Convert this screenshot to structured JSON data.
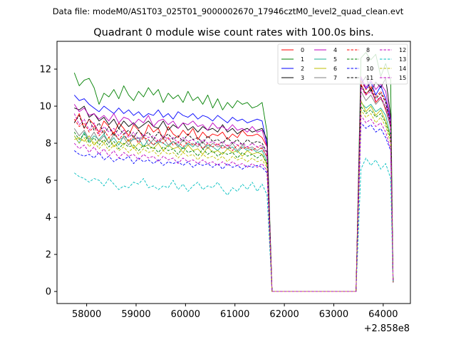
{
  "figure": {
    "suptitle": "Data file: modeM0/AS1T03_025T01_9000002670_17946cztM0_level2_quad_clean.evt",
    "title": "Quadrant 0 module wise count rates with 100.0s bins.",
    "x_offset_label": "+2.858e8"
  },
  "chart_data": {
    "type": "line",
    "title": "Quadrant 0 module wise count rates with 100.0s bins.",
    "xlabel": "",
    "ylabel": "",
    "x_offset": 285800000,
    "xlim": [
      57400,
      64550
    ],
    "ylim": [
      -0.65,
      13.5
    ],
    "xticks": [
      58000,
      59000,
      60000,
      61000,
      62000,
      63000,
      64000
    ],
    "xtick_labels": [
      "58000",
      "59000",
      "60000",
      "61000",
      "62000",
      "63000",
      "64000"
    ],
    "yticks": [
      0,
      2,
      4,
      6,
      8,
      10,
      12
    ],
    "ytick_labels": [
      "0",
      "2",
      "4",
      "6",
      "8",
      "10",
      "12"
    ],
    "legend_position": "top-right",
    "x_start": 57750,
    "x_step": 100,
    "gap_range": [
      61750,
      63450
    ],
    "after_start": 63550,
    "after_count": 7,
    "series": [
      {
        "name": "0",
        "color": "#ff0000",
        "dash": "solid",
        "before": [
          9.1,
          9.6,
          8.8,
          9.3,
          9.0,
          8.6,
          9.2,
          8.9,
          8.5,
          9.1,
          8.8,
          8.4,
          9.0,
          8.7,
          8.3,
          9.0,
          8.6,
          8.8,
          8.2,
          8.9,
          8.5,
          8.3,
          8.7,
          8.4,
          8.8,
          8.2,
          8.6,
          8.3,
          8.5,
          8.4,
          8.6,
          8.2,
          8.5,
          8.3,
          8.7,
          8.4,
          8.4,
          8.5,
          8.3
        ],
        "end": 7.8,
        "after": [
          11.2,
          10.6,
          11.0,
          10.2,
          10.5,
          9.8,
          8.9
        ]
      },
      {
        "name": "1",
        "color": "#008000",
        "dash": "solid",
        "before": [
          11.8,
          11.1,
          11.4,
          11.5,
          11.0,
          10.1,
          10.7,
          10.5,
          10.9,
          10.4,
          11.1,
          10.6,
          10.3,
          10.8,
          10.5,
          11.0,
          10.6,
          10.9,
          10.2,
          10.7,
          10.4,
          10.6,
          10.2,
          10.8,
          10.3,
          10.5,
          10.1,
          10.6,
          9.9,
          10.4,
          9.8,
          10.2,
          9.9,
          10.3,
          10.1,
          10.2,
          9.9,
          10.0,
          10.2
        ],
        "end": 8.6,
        "after": [
          12.6,
          12.9,
          12.5,
          12.8,
          11.6,
          12.3,
          11.4
        ]
      },
      {
        "name": "2",
        "color": "#0000ff",
        "dash": "solid",
        "before": [
          10.6,
          10.3,
          10.4,
          10.1,
          9.9,
          9.7,
          10.0,
          9.8,
          9.6,
          9.9,
          9.6,
          9.8,
          9.5,
          9.7,
          9.4,
          9.6,
          9.5,
          9.8,
          9.4,
          9.6,
          9.3,
          9.7,
          9.5,
          9.4,
          9.6,
          9.3,
          9.5,
          9.4,
          9.2,
          9.5,
          9.3,
          9.1,
          9.4,
          9.2,
          9.3,
          9.1,
          9.2,
          9.3,
          9.2
        ],
        "end": 7.9,
        "after": [
          11.5,
          10.9,
          11.3,
          10.6,
          11.1,
          10.4,
          9.2
        ]
      },
      {
        "name": "3",
        "color": "#000000",
        "dash": "solid",
        "before": [
          9.9,
          9.8,
          10.0,
          9.4,
          9.6,
          9.2,
          9.4,
          9.0,
          9.3,
          8.8,
          9.2,
          8.9,
          9.1,
          8.8,
          9.0,
          9.2,
          8.9,
          8.8,
          9.2,
          8.7,
          9.0,
          8.8,
          9.1,
          8.7,
          8.9,
          8.6,
          8.9,
          8.7,
          8.8,
          8.6,
          9.0,
          8.6,
          8.8,
          8.5,
          8.7,
          8.8,
          8.6,
          8.7,
          8.8
        ],
        "end": 8.2,
        "after": [
          11.2,
          11.6,
          10.8,
          11.3,
          11.0,
          11.5,
          9.5
        ]
      },
      {
        "name": "4",
        "color": "#bf00bf",
        "dash": "solid",
        "before": [
          10.1,
          9.7,
          9.9,
          9.5,
          9.6,
          9.3,
          9.5,
          9.2,
          9.6,
          9.1,
          9.4,
          9.3,
          9.0,
          9.3,
          9.1,
          9.5,
          8.9,
          9.2,
          9.3,
          9.0,
          9.2,
          8.8,
          9.1,
          9.0,
          9.2,
          8.9,
          9.0,
          8.7,
          9.1,
          8.8,
          8.9,
          8.7,
          9.0,
          8.7,
          8.8,
          8.6,
          8.9,
          8.6,
          8.7
        ],
        "end": 7.8,
        "after": [
          11.6,
          11.0,
          11.4,
          10.9,
          11.2,
          10.8,
          9.3
        ]
      },
      {
        "name": "5",
        "color": "#1aaf90",
        "dash": "solid",
        "before": [
          8.4,
          8.0,
          8.6,
          8.1,
          8.4,
          8.2,
          8.5,
          8.0,
          8.3,
          7.9,
          8.4,
          8.1,
          8.2,
          8.3,
          7.8,
          8.2,
          7.9,
          8.1,
          8.0,
          7.8,
          8.1,
          7.9,
          7.7,
          8.0,
          7.8,
          8.1,
          7.7,
          7.9,
          7.8,
          7.6,
          7.9,
          7.7,
          7.8,
          7.5,
          7.8,
          7.6,
          7.7,
          7.5,
          7.6
        ],
        "end": 7.0,
        "after": [
          10.2,
          9.9,
          10.1,
          9.7,
          9.9,
          9.5,
          8.4
        ]
      },
      {
        "name": "6",
        "color": "#bfbf00",
        "dash": "solid",
        "before": [
          8.2,
          8.3,
          8.1,
          8.4,
          7.9,
          8.2,
          8.0,
          8.3,
          7.8,
          8.1,
          7.9,
          8.2,
          7.7,
          8.0,
          7.8,
          7.9,
          7.7,
          8.0,
          7.6,
          7.9,
          7.7,
          7.8,
          7.5,
          7.9,
          7.6,
          7.7,
          7.4,
          7.8,
          7.5,
          7.6,
          7.4,
          7.7,
          7.5,
          7.6,
          7.3,
          7.6,
          7.4,
          7.5,
          7.4
        ],
        "end": 6.8,
        "after": [
          10.3,
          9.7,
          10.0,
          9.5,
          9.8,
          9.2,
          8.3
        ]
      },
      {
        "name": "7",
        "color": "#7f7f7f",
        "dash": "solid",
        "before": [
          8.8,
          8.4,
          8.7,
          8.2,
          8.6,
          8.1,
          8.4,
          8.0,
          8.5,
          8.2,
          8.3,
          7.9,
          8.3,
          8.1,
          8.4,
          7.9,
          8.2,
          8.0,
          8.3,
          7.9,
          8.1,
          7.8,
          8.2,
          7.9,
          8.0,
          7.8,
          8.1,
          7.7,
          8.0,
          7.8,
          7.9,
          7.7,
          8.0,
          7.6,
          7.9,
          7.7,
          7.8,
          7.6,
          7.8
        ],
        "end": 7.2,
        "after": [
          10.8,
          10.3,
          10.6,
          10.1,
          10.4,
          9.9,
          8.8
        ]
      },
      {
        "name": "8",
        "color": "#ff0000",
        "dash": "dashed",
        "before": [
          9.3,
          8.9,
          9.1,
          8.6,
          8.9,
          8.4,
          8.7,
          8.3,
          8.6,
          8.2,
          8.5,
          8.1,
          8.4,
          8.0,
          8.3,
          8.2,
          7.9,
          8.2,
          8.0,
          8.3,
          7.9,
          8.1,
          7.8,
          8.1,
          7.9,
          8.0,
          7.7,
          8.0,
          7.8,
          8.0,
          7.7,
          7.9,
          7.6,
          7.9,
          7.7,
          7.8,
          7.6,
          7.8,
          7.7
        ],
        "end": 7.3,
        "after": [
          11.4,
          10.9,
          11.1,
          10.5,
          10.8,
          10.3,
          9.0
        ]
      },
      {
        "name": "9",
        "color": "#008000",
        "dash": "dashed",
        "before": [
          8.6,
          8.2,
          8.5,
          8.0,
          8.3,
          7.9,
          8.2,
          7.8,
          8.1,
          7.7,
          8.0,
          7.8,
          7.9,
          7.6,
          7.9,
          7.7,
          7.8,
          7.5,
          7.8,
          7.6,
          7.7,
          7.4,
          7.8,
          7.5,
          7.6,
          7.3,
          7.7,
          7.4,
          7.6,
          7.3,
          7.5,
          7.4,
          7.5,
          7.2,
          7.5,
          7.3,
          7.4,
          7.2,
          7.4
        ],
        "end": 6.9,
        "after": [
          10.0,
          9.6,
          9.8,
          9.4,
          9.6,
          9.1,
          8.2
        ]
      },
      {
        "name": "10",
        "color": "#0000ff",
        "dash": "dashed",
        "before": [
          7.6,
          7.4,
          7.3,
          7.4,
          7.2,
          7.5,
          7.1,
          7.3,
          7.0,
          7.2,
          7.1,
          7.3,
          6.9,
          7.2,
          7.0,
          7.1,
          6.9,
          7.1,
          6.8,
          7.0,
          6.9,
          7.0,
          6.8,
          7.0,
          6.7,
          6.9,
          6.8,
          6.9,
          6.7,
          6.9,
          6.6,
          6.9,
          6.7,
          6.8,
          6.6,
          6.8,
          6.7,
          6.8,
          6.7
        ],
        "end": 6.4,
        "after": [
          9.1,
          8.8,
          9.0,
          8.6,
          8.8,
          8.3,
          7.6
        ]
      },
      {
        "name": "11",
        "color": "#000000",
        "dash": "dashed",
        "before": [
          9.1,
          9.5,
          8.8,
          9.3,
          8.7,
          9.1,
          8.5,
          8.9,
          8.4,
          8.8,
          8.5,
          8.7,
          8.3,
          8.7,
          8.4,
          8.6,
          8.2,
          8.6,
          8.3,
          8.5,
          8.2,
          8.4,
          8.1,
          8.5,
          8.2,
          8.3,
          8.0,
          8.4,
          8.1,
          8.2,
          8.0,
          8.3,
          8.0,
          8.2,
          7.9,
          8.2,
          8.0,
          8.1,
          8.0
        ],
        "end": 7.5,
        "after": [
          11.1,
          10.7,
          10.9,
          10.4,
          10.7,
          10.2,
          9.0
        ]
      },
      {
        "name": "12",
        "color": "#bf00bf",
        "dash": "dashed",
        "before": [
          9.6,
          9.0,
          9.3,
          8.7,
          9.1,
          8.5,
          8.9,
          8.6,
          8.8,
          8.4,
          8.7,
          8.3,
          8.6,
          8.2,
          8.5,
          8.3,
          8.4,
          8.1,
          8.4,
          8.2,
          8.3,
          8.0,
          8.3,
          8.1,
          8.2,
          7.9,
          8.2,
          8.0,
          8.1,
          7.9,
          8.1,
          7.8,
          8.1,
          7.9,
          8.0,
          7.8,
          8.0,
          7.8,
          7.9
        ],
        "end": 7.4,
        "after": [
          11.0,
          10.6,
          10.8,
          10.3,
          10.5,
          10.0,
          8.9
        ]
      },
      {
        "name": "13",
        "color": "#00bfbf",
        "dash": "dashed",
        "before": [
          6.4,
          6.2,
          6.1,
          5.9,
          6.1,
          6.0,
          5.7,
          6.1,
          5.8,
          5.5,
          5.7,
          5.6,
          5.9,
          5.8,
          6.1,
          5.6,
          5.7,
          5.5,
          5.7,
          5.6,
          6.0,
          5.5,
          5.8,
          5.4,
          5.7,
          5.9,
          5.5,
          5.7,
          5.6,
          5.9,
          5.5,
          5.2,
          5.6,
          5.4,
          5.8,
          5.5,
          5.9,
          5.4,
          5.8
        ],
        "end": 5.2,
        "after": [
          6.6,
          7.2,
          6.8,
          7.1,
          6.6,
          6.9,
          6.1
        ]
      },
      {
        "name": "14",
        "color": "#bfbf00",
        "dash": "dashed",
        "before": [
          8.4,
          8.0,
          8.3,
          7.8,
          8.1,
          7.7,
          8.0,
          7.6,
          7.9,
          7.6,
          7.8,
          7.5,
          7.8,
          7.4,
          7.7,
          7.5,
          7.6,
          7.3,
          7.6,
          7.4,
          7.5,
          7.2,
          7.5,
          7.3,
          7.4,
          7.1,
          7.4,
          7.2,
          7.3,
          7.1,
          7.3,
          7.0,
          7.3,
          7.1,
          7.2,
          7.0,
          7.2,
          7.0,
          7.1
        ],
        "end": 6.7,
        "after": [
          9.8,
          9.4,
          9.6,
          9.1,
          9.4,
          8.9,
          8.0
        ]
      },
      {
        "name": "15",
        "color": "#bf00bf",
        "dash": "dashed",
        "before": [
          8.0,
          7.7,
          7.9,
          7.5,
          7.8,
          7.4,
          7.7,
          7.3,
          7.6,
          7.2,
          7.5,
          7.3,
          7.4,
          7.1,
          7.4,
          7.2,
          7.3,
          7.0,
          7.3,
          7.1,
          7.2,
          6.9,
          7.2,
          7.0,
          7.1,
          6.9,
          7.1,
          6.9,
          7.0,
          6.8,
          7.0,
          6.8,
          7.0,
          6.8,
          6.9,
          6.7,
          6.9,
          6.7,
          6.9
        ],
        "end": 6.5,
        "after": [
          9.5,
          9.1,
          9.3,
          8.9,
          9.1,
          8.6,
          7.7
        ]
      }
    ]
  }
}
